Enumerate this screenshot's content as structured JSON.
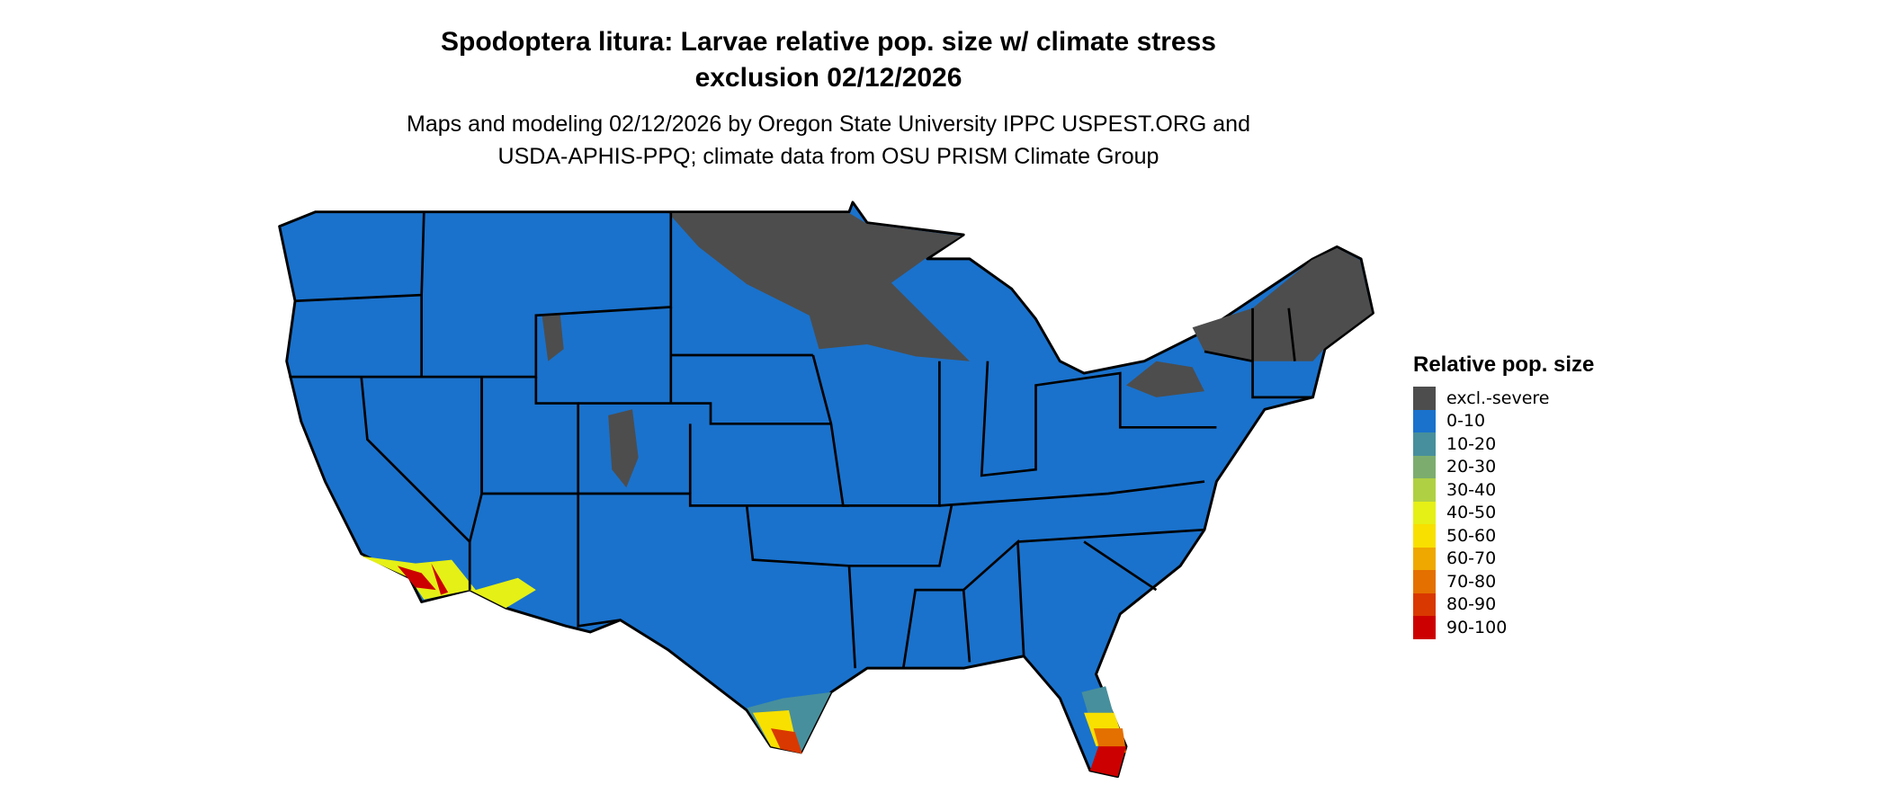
{
  "title": {
    "line1": "Spodoptera litura: Larvae relative pop. size w/ climate stress",
    "line2": "exclusion 02/12/2026"
  },
  "subtitle": {
    "line1": "Maps and modeling 02/12/2026 by Oregon State University IPPC USPEST.ORG and",
    "line2": "USDA-APHIS-PPQ; climate data from OSU PRISM Climate Group"
  },
  "legend": {
    "title": "Relative pop. size",
    "items": [
      {
        "label": "excl.-severe",
        "color": "#4d4d4d"
      },
      {
        "label": "0-10",
        "color": "#1a72cc"
      },
      {
        "label": "10-20",
        "color": "#478f9c"
      },
      {
        "label": "20-30",
        "color": "#7cad6f"
      },
      {
        "label": "30-40",
        "color": "#b0d043"
      },
      {
        "label": "40-50",
        "color": "#e5f016"
      },
      {
        "label": "50-60",
        "color": "#f8e000"
      },
      {
        "label": "60-70",
        "color": "#eea800"
      },
      {
        "label": "70-80",
        "color": "#e47000"
      },
      {
        "label": "80-90",
        "color": "#d93800"
      },
      {
        "label": "90-100",
        "color": "#cc0000"
      }
    ]
  }
}
